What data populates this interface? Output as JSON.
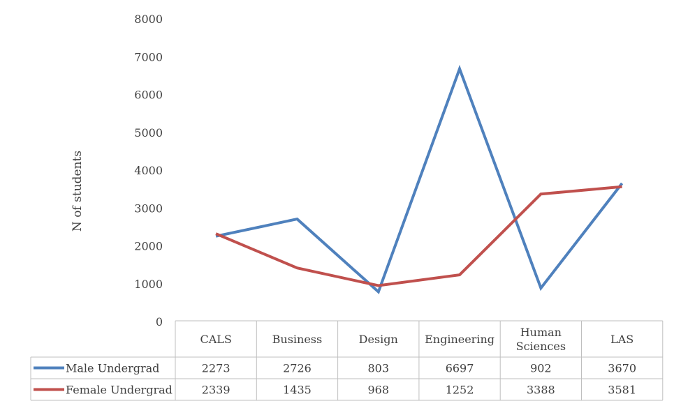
{
  "chart_data": {
    "type": "line",
    "title": "",
    "xlabel": "",
    "ylabel": "N of students",
    "ylim": [
      0,
      8000
    ],
    "yticks": [
      0,
      1000,
      2000,
      3000,
      4000,
      5000,
      6000,
      7000,
      8000
    ],
    "categories": [
      "CALS",
      "Business",
      "Design",
      "Engineering",
      "Human\nSciences",
      "LAS"
    ],
    "grid": false,
    "legend": "data-table",
    "series": [
      {
        "name": "Male Undergrad",
        "color": "#4f81bd",
        "values": [
          2273,
          2726,
          803,
          6697,
          902,
          3670
        ]
      },
      {
        "name": "Female Undergrad",
        "color": "#c0504d",
        "values": [
          2339,
          1435,
          968,
          1252,
          3388,
          3581
        ]
      }
    ]
  }
}
